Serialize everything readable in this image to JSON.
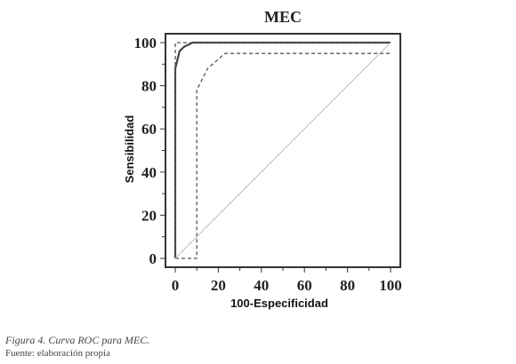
{
  "chart_data": {
    "type": "line",
    "title": "MEC",
    "xlabel": "100-Especificidad",
    "ylabel": "Sensibilidad",
    "xlim": [
      0,
      100
    ],
    "ylim": [
      0,
      100
    ],
    "x_ticks": [
      "0",
      "20",
      "40",
      "60",
      "80",
      "100"
    ],
    "y_ticks": [
      "0",
      "20",
      "40",
      "60",
      "80",
      "100"
    ],
    "grid": false,
    "series": [
      {
        "style": "solid",
        "points": [
          [
            0,
            0
          ],
          [
            0,
            88
          ],
          [
            2,
            96
          ],
          [
            4,
            98
          ],
          [
            8,
            100
          ],
          [
            100,
            100
          ]
        ]
      },
      {
        "style": "dashed",
        "points": [
          [
            0,
            0
          ],
          [
            0,
            100
          ],
          [
            100,
            100
          ]
        ]
      },
      {
        "style": "dashed",
        "points": [
          [
            0,
            0
          ],
          [
            10,
            0
          ],
          [
            10,
            78
          ],
          [
            15,
            88
          ],
          [
            23,
            95
          ],
          [
            100,
            95
          ]
        ]
      },
      {
        "style": "reference",
        "points": [
          [
            0,
            0
          ],
          [
            100,
            100
          ]
        ]
      }
    ]
  },
  "caption": {
    "figure": "Figura 4. Curva ROC para MEC.",
    "source": "Fuente: elaboración propia"
  }
}
